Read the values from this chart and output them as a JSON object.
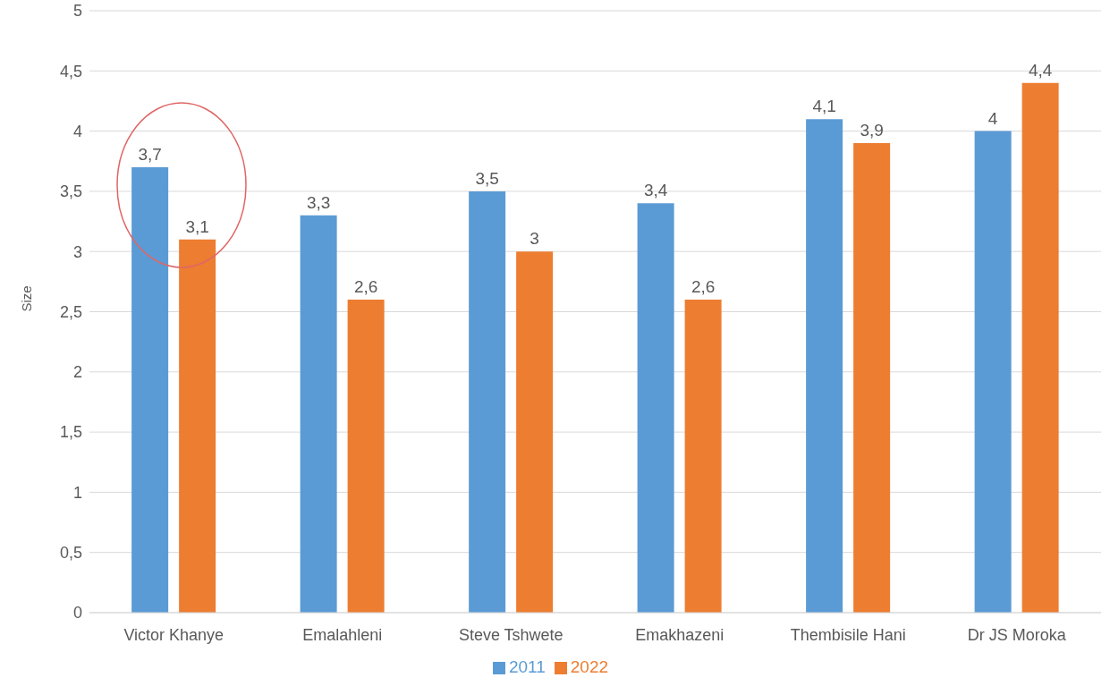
{
  "chart_data": {
    "type": "bar",
    "ylabel": "Size",
    "categories": [
      "Victor Khanye",
      "Emalahleni",
      "Steve Tshwete",
      "Emakhazeni",
      "Thembisile Hani",
      "Dr JS Moroka"
    ],
    "series": [
      {
        "name": "2011",
        "color": "#5b9bd5",
        "values": [
          3.7,
          3.3,
          3.5,
          3.4,
          4.1,
          4
        ],
        "value_labels": [
          "3,7",
          "3,3",
          "3,5",
          "3,4",
          "4,1",
          "4"
        ]
      },
      {
        "name": "2022",
        "color": "#ed7d31",
        "values": [
          3.1,
          2.6,
          3,
          2.6,
          3.9,
          4.4
        ],
        "value_labels": [
          "3,1",
          "2,6",
          "3",
          "2,6",
          "3,9",
          "4,4"
        ]
      }
    ],
    "ylim": [
      0,
      5
    ],
    "yticks": [
      0,
      {
        "value": 0.5,
        "label": "0,5"
      },
      1,
      {
        "value": 1.5,
        "label": "1,5"
      },
      2,
      {
        "value": 2.5,
        "label": "2,5"
      },
      3,
      {
        "value": 3.5,
        "label": "3,5"
      },
      4,
      {
        "value": 4.5,
        "label": "4,5"
      },
      5
    ],
    "grid": "y",
    "legend": "bottom"
  }
}
